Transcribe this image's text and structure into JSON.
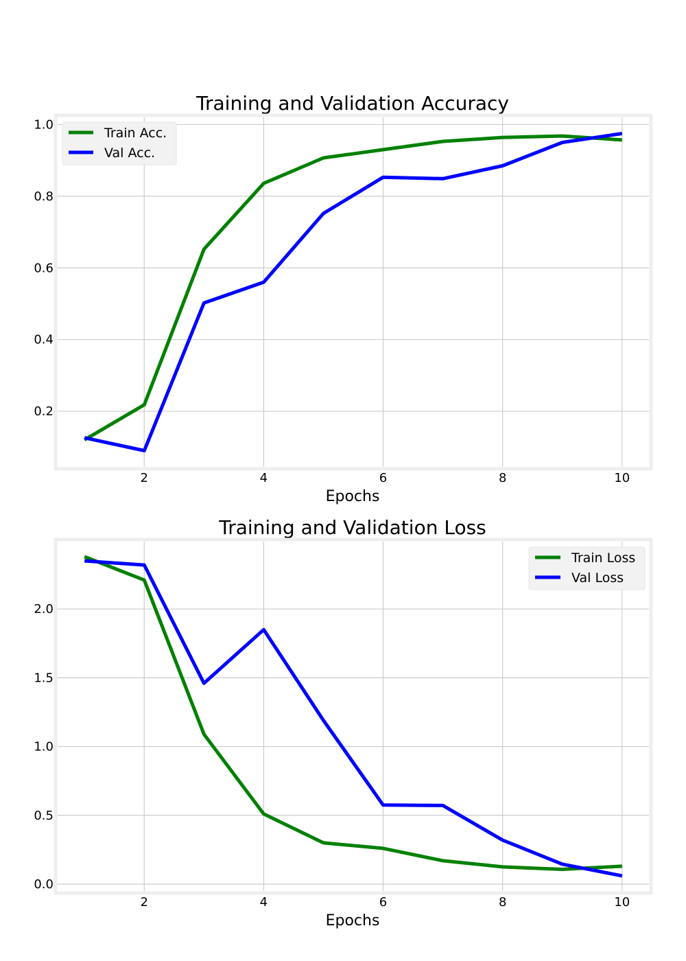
{
  "chart_data": [
    {
      "type": "line",
      "title": "Training and Validation Accuracy",
      "xlabel": "Epochs",
      "ylabel": "",
      "x": [
        1,
        2,
        3,
        4,
        5,
        6,
        7,
        8,
        9,
        10
      ],
      "xlim": [
        0.55,
        10.45
      ],
      "ylim": [
        0.045,
        1.02
      ],
      "xticks": [
        2,
        4,
        6,
        8,
        10
      ],
      "yticks": [
        0.2,
        0.4,
        0.6,
        0.8,
        1.0
      ],
      "ytick_labels": [
        "0.2",
        "0.4",
        "0.6",
        "0.8",
        "1.0"
      ],
      "grid": true,
      "legend_position": "top-left",
      "series": [
        {
          "name": "Train Acc.",
          "color": "#008000",
          "values": [
            0.12,
            0.218,
            0.652,
            0.836,
            0.907,
            0.93,
            0.953,
            0.964,
            0.968,
            0.957
          ]
        },
        {
          "name": "Val Acc.",
          "color": "#0000ff",
          "values": [
            0.126,
            0.09,
            0.502,
            0.56,
            0.752,
            0.853,
            0.849,
            0.885,
            0.95,
            0.975
          ]
        }
      ]
    },
    {
      "type": "line",
      "title": "Training and Validation Loss",
      "xlabel": "Epochs",
      "ylabel": "",
      "x": [
        1,
        2,
        3,
        4,
        5,
        6,
        7,
        8,
        9,
        10
      ],
      "xlim": [
        0.55,
        10.45
      ],
      "ylim": [
        -0.05,
        2.49
      ],
      "xticks": [
        2,
        4,
        6,
        8,
        10
      ],
      "yticks": [
        0.0,
        0.5,
        1.0,
        1.5,
        2.0
      ],
      "ytick_labels": [
        "0.0",
        "0.5",
        "1.0",
        "1.5",
        "2.0"
      ],
      "grid": true,
      "legend_position": "top-right",
      "series": [
        {
          "name": "Train Loss",
          "color": "#008000",
          "values": [
            2.38,
            2.21,
            1.09,
            0.51,
            0.3,
            0.26,
            0.17,
            0.125,
            0.107,
            0.13
          ]
        },
        {
          "name": "Val Loss",
          "color": "#0000ff",
          "values": [
            2.35,
            2.32,
            1.46,
            1.85,
            1.19,
            0.575,
            0.572,
            0.32,
            0.145,
            0.06
          ]
        }
      ]
    }
  ]
}
